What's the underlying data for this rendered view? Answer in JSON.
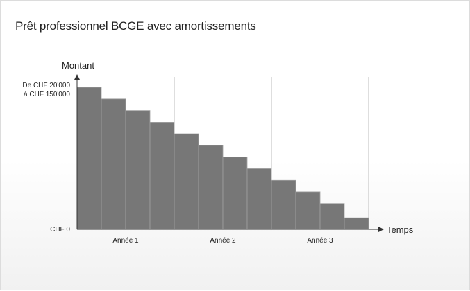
{
  "title": "Prêt professionnel BCGE avec amortissements",
  "colors": {
    "bar": "#777777",
    "bar_edge": "#a0a0a0",
    "axis": "#333333",
    "gridline": "#bdbdbd"
  },
  "chart_data": {
    "type": "bar",
    "title": "Prêt professionnel BCGE avec amortissements",
    "ylabel": "Montant",
    "xlabel": "Temps",
    "y_tick_labels": {
      "top_line1": "De CHF 20'000",
      "top_line2": "à CHF 150'000",
      "bottom": "CHF 0"
    },
    "x_tick_labels": [
      "Année 1",
      "Année 2",
      "Année 3"
    ],
    "periods_per_year": 4,
    "values": [
      100,
      91.8,
      83.6,
      75.4,
      67.3,
      59.1,
      50.9,
      42.7,
      34.5,
      26.4,
      18.2,
      8.2
    ],
    "ylim": [
      0,
      100
    ],
    "grid": "vertical lines at year boundaries"
  }
}
